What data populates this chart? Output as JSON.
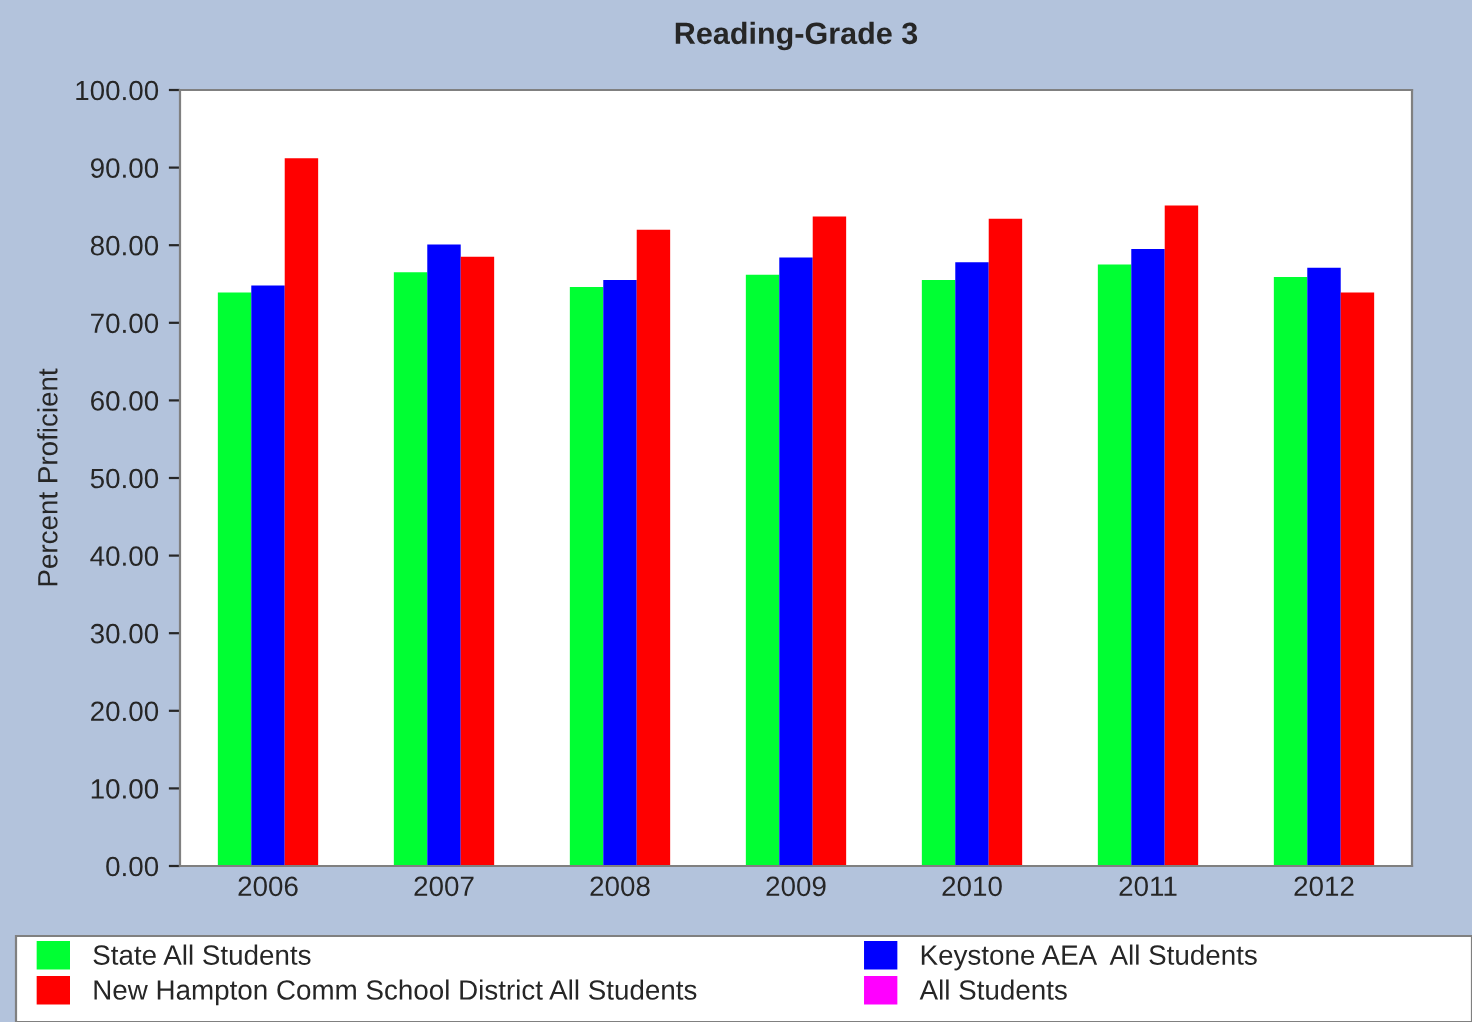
{
  "chart_data": {
    "type": "bar",
    "title": "Reading-Grade 3",
    "ylabel": "Percent Proficient",
    "categories": [
      "2006",
      "2007",
      "2008",
      "2009",
      "2010",
      "2011",
      "2012"
    ],
    "series": [
      {
        "name": "State All Students",
        "color": "#00ff33",
        "values": [
          73.9,
          76.5,
          74.6,
          76.2,
          75.5,
          77.5,
          75.9
        ]
      },
      {
        "name": "Keystone AEA  All Students",
        "color": "#0000ff",
        "values": [
          74.8,
          80.1,
          75.5,
          78.4,
          77.8,
          79.5,
          77.1
        ]
      },
      {
        "name": "New Hampton Comm School District All Students",
        "color": "#ff0000",
        "values": [
          91.2,
          78.5,
          82.0,
          83.7,
          83.4,
          85.1,
          73.9
        ]
      },
      {
        "name": "All Students",
        "color": "#ff00ff",
        "values": [
          null,
          null,
          null,
          null,
          null,
          null,
          null
        ]
      }
    ],
    "ylim": [
      0,
      100
    ],
    "yticks": [
      {
        "value": 0,
        "label": "0.00"
      },
      {
        "value": 10,
        "label": "10.00"
      },
      {
        "value": 20,
        "label": "20.00"
      },
      {
        "value": 30,
        "label": "30.00"
      },
      {
        "value": 40,
        "label": "40.00"
      },
      {
        "value": 50,
        "label": "50.00"
      },
      {
        "value": 60,
        "label": "60.00"
      },
      {
        "value": 70,
        "label": "70.00"
      },
      {
        "value": 80,
        "label": "80.00"
      },
      {
        "value": 90,
        "label": "90.00"
      },
      {
        "value": 100,
        "label": "100.00"
      }
    ],
    "grid": false,
    "legend": "bottom"
  }
}
